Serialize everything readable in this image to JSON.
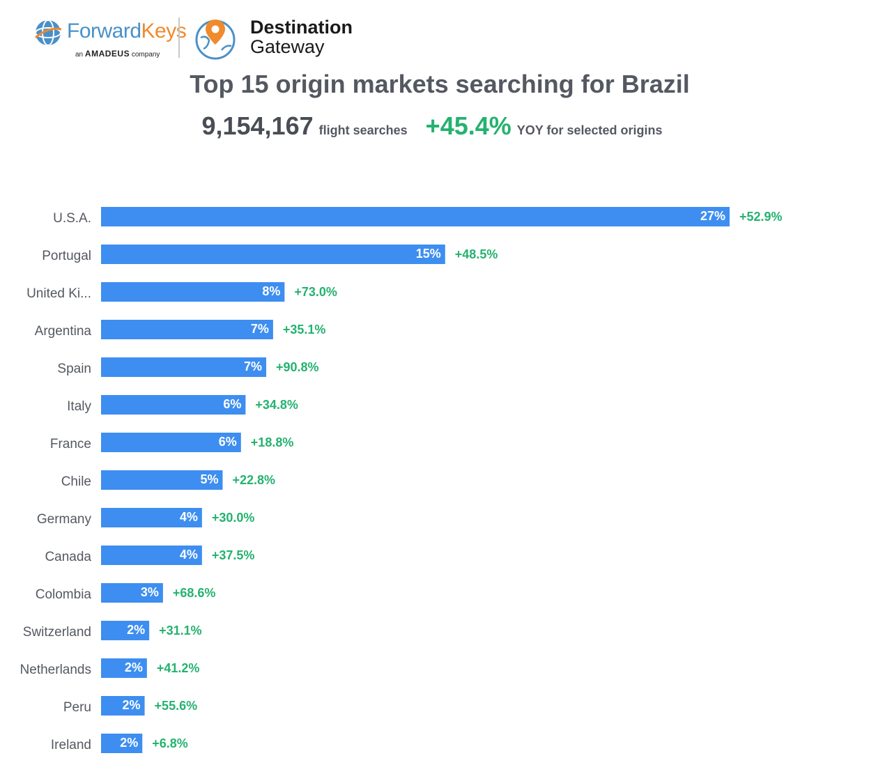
{
  "header": {
    "brand_forward": "Forward",
    "brand_keys": "Keys",
    "brand_sub_prefix": "an",
    "brand_sub_amadeus": "AMADEUS",
    "brand_sub_suffix": "company",
    "product_line1": "Destination",
    "product_line2": "Gateway"
  },
  "summary": {
    "title": "Top 15 origin markets searching for Brazil",
    "searches": "9,154,167",
    "searches_label": "flight searches",
    "yoy": "+45.4%",
    "yoy_label": "YOY for selected origins"
  },
  "colors": {
    "bar": "#3d8ef0",
    "yoy": "#24b26f",
    "text": "#545861"
  },
  "chart_data": {
    "type": "bar",
    "orientation": "horizontal",
    "categories": [
      "U.S.A.",
      "Portugal",
      "United Ki...",
      "Argentina",
      "Spain",
      "Italy",
      "France",
      "Chile",
      "Germany",
      "Canada",
      "Colombia",
      "Switzerland",
      "Netherlands",
      "Peru",
      "Ireland"
    ],
    "values": [
      27.4,
      15.0,
      8.0,
      7.5,
      7.2,
      6.3,
      6.1,
      5.3,
      4.4,
      4.4,
      2.7,
      2.1,
      2.0,
      1.9,
      1.8
    ],
    "value_labels": [
      "27%",
      "15%",
      "8%",
      "7%",
      "7%",
      "6%",
      "6%",
      "5%",
      "4%",
      "4%",
      "3%",
      "2%",
      "2%",
      "2%",
      "2%"
    ],
    "yoy_labels": [
      "+52.9%",
      "+48.5%",
      "+73.0%",
      "+35.1%",
      "+90.8%",
      "+34.8%",
      "+18.8%",
      "+22.8%",
      "+30.0%",
      "+37.5%",
      "+68.6%",
      "+31.1%",
      "+41.2%",
      "+55.6%",
      "+6.8%"
    ],
    "xlim": [
      0,
      27.4
    ],
    "grid": false,
    "legend": "none"
  }
}
